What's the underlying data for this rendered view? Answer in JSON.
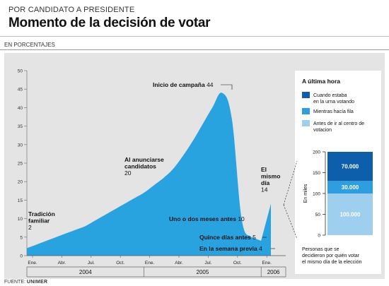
{
  "header": {
    "kicker": "POR CANDIDATO A PRESIDENTE",
    "title": "Momento de la decisión de votar",
    "units": "EN PORCENTAJES"
  },
  "source": {
    "label": "FUENTE:",
    "name": "UNIMER"
  },
  "colors": {
    "area": "#29a3e0",
    "panel": "#e4e4e4",
    "dark_blue": "#0d5fab",
    "mid_blue": "#2e9ee0",
    "light_blue": "#9ecfee"
  },
  "chart_data": {
    "type": "area",
    "ylim": [
      0,
      50
    ],
    "yticks": [
      0,
      5,
      10,
      15,
      20,
      25,
      30,
      35,
      40,
      45,
      50
    ],
    "xtick_labels": [
      "Ene.",
      "Abr.",
      "Jul.",
      "Oct.",
      "Ene.",
      "Abr.",
      "Jul.",
      "Oct.",
      "Ene."
    ],
    "years": [
      "2004",
      "2005",
      "2006"
    ],
    "series": [
      {
        "x": [
          "2004-01",
          "2004-02",
          "2004-03",
          "2004-04",
          "2004-05",
          "2004-06",
          "2004-07",
          "2004-08",
          "2004-09",
          "2004-10",
          "2004-11",
          "2004-12",
          "2005-01",
          "2005-02",
          "2005-03",
          "2005-04",
          "2005-05",
          "2005-06",
          "2005-07",
          "2005-08",
          "2005-09",
          "2005-10",
          "2005-11",
          "2005-12",
          "2006-01",
          "2006-02"
        ],
        "values": [
          2,
          3,
          4,
          5,
          6,
          7,
          8,
          9.5,
          11,
          12.5,
          14,
          15.5,
          17,
          19,
          21,
          23.5,
          27,
          31,
          35.5,
          40,
          44,
          37,
          10,
          5,
          4,
          14
        ]
      }
    ],
    "annotations": [
      {
        "lines": [
          "Tradición",
          "familiar"
        ],
        "value": "2"
      },
      {
        "lines": [
          "Al anunciarse",
          "candidatos"
        ],
        "value": "20"
      },
      {
        "lines": [
          "Inicio de campaña"
        ],
        "value": "44"
      },
      {
        "lines": [
          "Uno o dos meses antes"
        ],
        "value": "10"
      },
      {
        "lines": [
          "Quince días antes"
        ],
        "value": "5"
      },
      {
        "lines": [
          "En la semana previa"
        ],
        "value": "4"
      },
      {
        "lines": [
          "El",
          "mismo",
          "día"
        ],
        "value": "14"
      }
    ],
    "sidebar": {
      "title": "A última hora",
      "legend": [
        {
          "lines": [
            "Cuando estaba",
            "en la urna votando"
          ],
          "color": "#0d5fab"
        },
        {
          "lines": [
            "Mientras hacía fila"
          ],
          "color": "#2e9ee0"
        },
        {
          "lines": [
            "Antes de ir al centro de",
            "votacion"
          ],
          "color": "#9ecfee"
        }
      ],
      "bar": {
        "type": "stacked-bar",
        "ylabel": "En miles",
        "ylim": [
          0,
          200
        ],
        "yticks": [
          0,
          50,
          100,
          150,
          200
        ],
        "segments": [
          {
            "label": "100.000",
            "value": 100000,
            "color": "#9ecfee"
          },
          {
            "label": "30.000",
            "value": 30000,
            "color": "#2e9ee0"
          },
          {
            "label": "70.000",
            "value": 70000,
            "color": "#0d5fab"
          }
        ]
      },
      "caption": [
        "Personas que se",
        "decidieron por quién votar",
        "el mismo día de la elección"
      ]
    }
  }
}
